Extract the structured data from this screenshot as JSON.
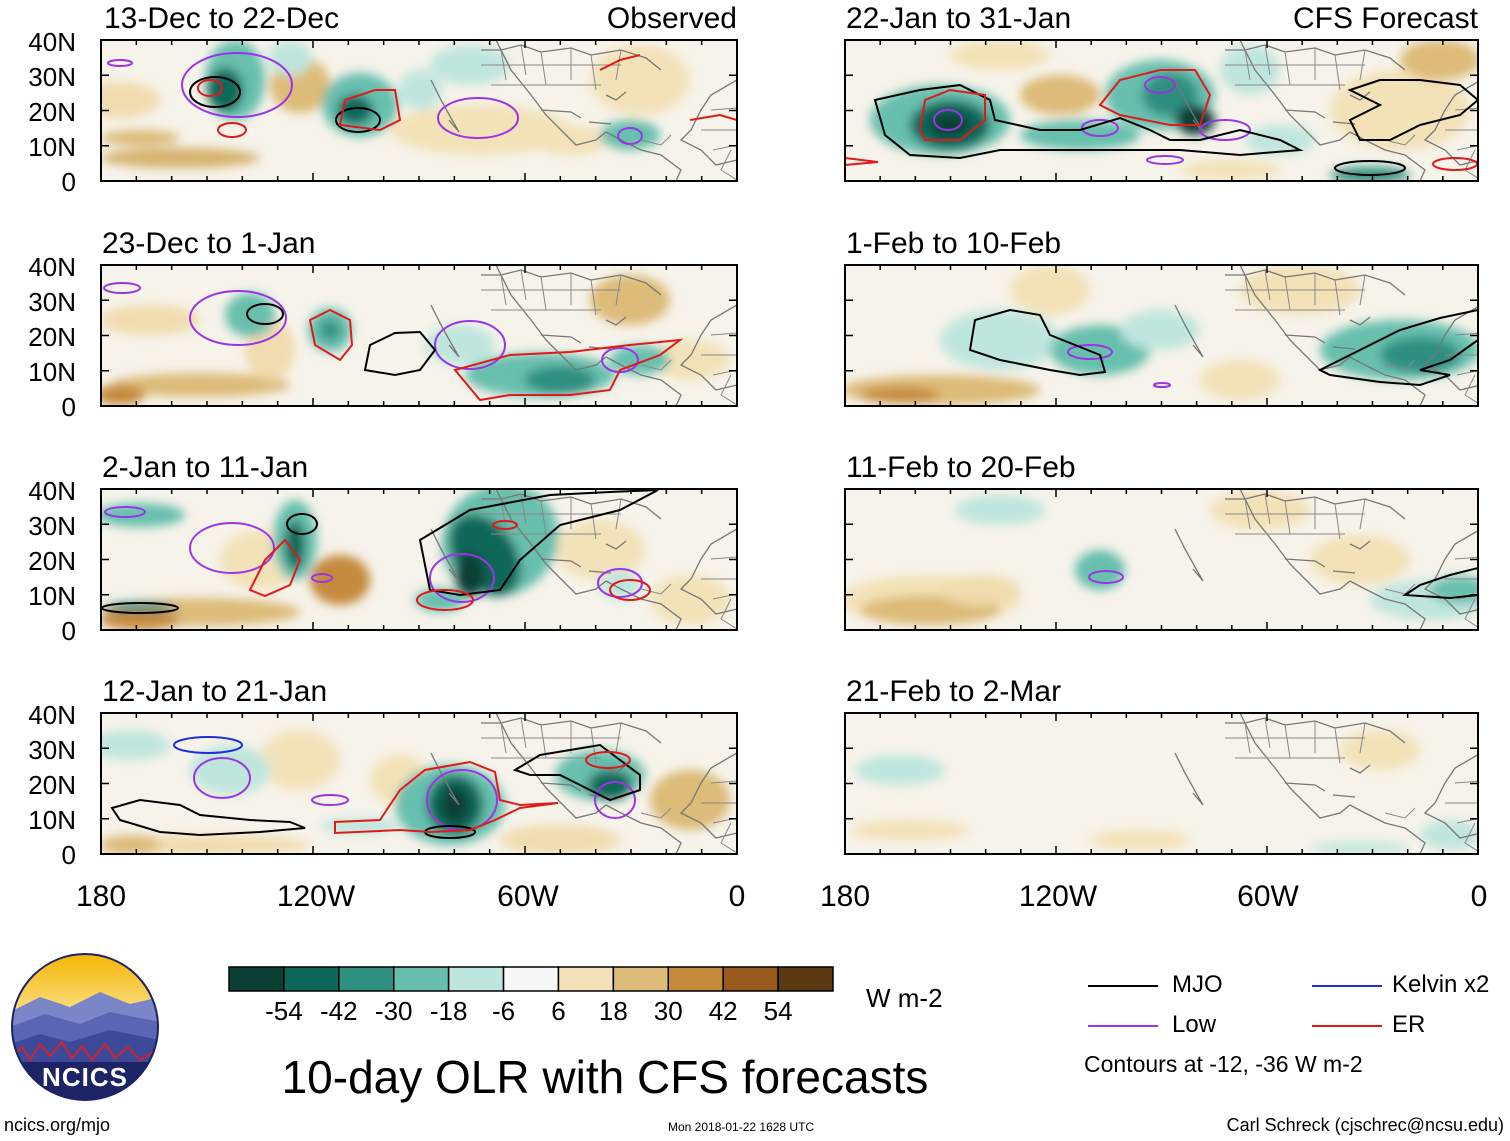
{
  "panels": [
    {
      "period": "13-Dec to 22-Dec",
      "tag": "Observed"
    },
    {
      "period": "23-Dec to 1-Jan",
      "tag": ""
    },
    {
      "period": "2-Jan to 11-Jan",
      "tag": ""
    },
    {
      "period": "12-Jan to 21-Jan",
      "tag": ""
    },
    {
      "period": "22-Jan to 31-Jan",
      "tag": "CFS Forecast"
    },
    {
      "period": "1-Feb to 10-Feb",
      "tag": ""
    },
    {
      "period": "11-Feb to 20-Feb",
      "tag": ""
    },
    {
      "period": "21-Feb to 2-Mar",
      "tag": ""
    }
  ],
  "lat_labels": [
    "40N",
    "30N",
    "20N",
    "10N",
    "0"
  ],
  "lon_labels": [
    "180",
    "120W",
    "60W",
    "0"
  ],
  "colorbar": {
    "ticks": [
      "-54",
      "-42",
      "-30",
      "-18",
      "-6",
      "6",
      "18",
      "30",
      "42",
      "54"
    ],
    "colors": [
      "#0b3f34",
      "#0f6759",
      "#2f8f80",
      "#68bfae",
      "#bfe6dd",
      "#f7f7f7",
      "#f3e2b8",
      "#ddbb78",
      "#c58a3c",
      "#985a1c",
      "#5a3812"
    ],
    "units": "W m-2"
  },
  "legend": {
    "mjo": {
      "label": "MJO",
      "color": "#000000"
    },
    "kelvin": {
      "label": "Kelvin x2",
      "color": "#1f2fd6"
    },
    "low": {
      "label": "Low",
      "color": "#9a35e6"
    },
    "er": {
      "label": "ER",
      "color": "#e01a1a"
    },
    "note": "Contours at -12, -36 W m-2"
  },
  "title": "10-day OLR with CFS forecasts",
  "logo_text": "NCICS",
  "url": "ncics.org/mjo",
  "timestamp": "Mon 2018-01-22 1628 UTC",
  "credit": "Carl Schreck (cjschrec@ncsu.edu)"
}
